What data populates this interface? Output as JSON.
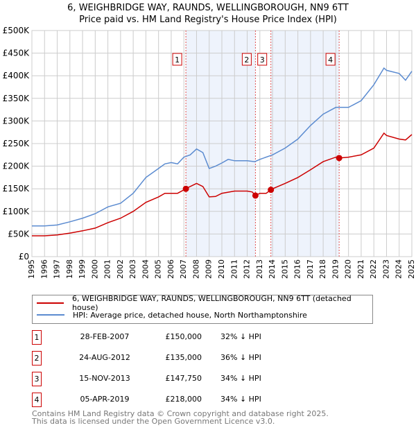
{
  "title": "6, WEIGHBRIDGE WAY, RAUNDS, WELLINGBOROUGH, NN9 6TT",
  "subtitle": "Price paid vs. HM Land Registry's House Price Index (HPI)",
  "chart_data": {
    "type": "line",
    "title": "6, WEIGHBRIDGE WAY, RAUNDS, WELLINGBOROUGH, NN9 6TT",
    "subtitle": "Price paid vs. HM Land Registry's House Price Index (HPI)",
    "xlim": [
      1995,
      2025
    ],
    "ylim": [
      0,
      500000
    ],
    "grid": true,
    "x_ticks": [
      "1995",
      "1996",
      "1997",
      "1998",
      "1999",
      "2000",
      "2001",
      "2002",
      "2003",
      "2004",
      "2005",
      "2006",
      "2007",
      "2008",
      "2009",
      "2010",
      "2011",
      "2012",
      "2013",
      "2014",
      "2015",
      "2016",
      "2017",
      "2018",
      "2019",
      "2020",
      "2021",
      "2022",
      "2023",
      "2024",
      "2025"
    ],
    "y_ticks": [
      {
        "v": 0,
        "label": "£0"
      },
      {
        "v": 50000,
        "label": "£50K"
      },
      {
        "v": 100000,
        "label": "£100K"
      },
      {
        "v": 150000,
        "label": "£150K"
      },
      {
        "v": 200000,
        "label": "£200K"
      },
      {
        "v": 250000,
        "label": "£250K"
      },
      {
        "v": 300000,
        "label": "£300K"
      },
      {
        "v": 350000,
        "label": "£350K"
      },
      {
        "v": 400000,
        "label": "£400K"
      },
      {
        "v": 450000,
        "label": "£450K"
      },
      {
        "v": 500000,
        "label": "£500K"
      }
    ],
    "shaded_ranges": [
      [
        2007.16,
        2012.65
      ],
      [
        2013.87,
        2019.26
      ]
    ],
    "series": [
      {
        "name": "6, WEIGHBRIDGE WAY, RAUNDS, WELLINGBOROUGH, NN9 6TT (detached house)",
        "color": "#cc0000",
        "x": [
          1995,
          1996,
          1997,
          1998,
          1999,
          2000,
          2001,
          2002,
          2003,
          2004,
          2005,
          2005.5,
          2006,
          2006.5,
          2007.16,
          2007.5,
          2008,
          2008.5,
          2009,
          2009.5,
          2010,
          2011,
          2012,
          2012.4,
          2012.65,
          2013,
          2013.5,
          2013.87,
          2014,
          2015,
          2016,
          2017,
          2018,
          2019,
          2019.26,
          2020,
          2021,
          2022,
          2022.8,
          2023,
          2024,
          2024.5,
          2025
        ],
        "y": [
          46000,
          46000,
          48000,
          52000,
          57000,
          63000,
          75000,
          85000,
          100000,
          120000,
          132000,
          140000,
          140000,
          140000,
          150000,
          155000,
          162000,
          155000,
          132000,
          133000,
          140000,
          145000,
          145000,
          143000,
          135000,
          140000,
          140000,
          147750,
          150000,
          162000,
          175000,
          192000,
          210000,
          220000,
          218000,
          220000,
          225000,
          240000,
          273000,
          268000,
          260000,
          258000,
          270000
        ]
      },
      {
        "name": "HPI: Average price, detached house, North Northamptonshire",
        "color": "#5b8bd0",
        "x": [
          1995,
          1996,
          1997,
          1998,
          1999,
          2000,
          2001,
          2002,
          2003,
          2004,
          2005,
          2005.5,
          2006,
          2006.5,
          2007,
          2007.5,
          2008,
          2008.5,
          2009,
          2009.5,
          2010,
          2010.5,
          2011,
          2012,
          2012.6,
          2013,
          2014,
          2015,
          2016,
          2017,
          2018,
          2019,
          2020,
          2021,
          2022,
          2022.8,
          2023,
          2024,
          2024.5,
          2025
        ],
        "y": [
          68000,
          68000,
          70000,
          77000,
          85000,
          95000,
          110000,
          118000,
          140000,
          175000,
          195000,
          205000,
          208000,
          205000,
          220000,
          225000,
          238000,
          230000,
          195000,
          200000,
          207000,
          215000,
          212000,
          212000,
          210000,
          215000,
          225000,
          240000,
          260000,
          290000,
          315000,
          330000,
          330000,
          345000,
          380000,
          417000,
          412000,
          405000,
          390000,
          410000
        ]
      }
    ],
    "sales": [
      {
        "n": "1",
        "x": 2007.16,
        "y": 150000
      },
      {
        "n": "2",
        "x": 2012.65,
        "y": 135000
      },
      {
        "n": "3",
        "x": 2013.87,
        "y": 147750
      },
      {
        "n": "4",
        "x": 2019.26,
        "y": 218000
      }
    ],
    "legend_placement": "below"
  },
  "legend": [
    {
      "label": "6, WEIGHBRIDGE WAY, RAUNDS, WELLINGBOROUGH, NN9 6TT (detached house)",
      "color": "#cc0000"
    },
    {
      "label": "HPI: Average price, detached house, North Northamptonshire",
      "color": "#5b8bd0"
    }
  ],
  "transactions": [
    {
      "num": "1",
      "date": "28-FEB-2007",
      "price": "£150,000",
      "hpi": "32% ↓ HPI"
    },
    {
      "num": "2",
      "date": "24-AUG-2012",
      "price": "£135,000",
      "hpi": "36% ↓ HPI"
    },
    {
      "num": "3",
      "date": "15-NOV-2013",
      "price": "£147,750",
      "hpi": "34% ↓ HPI"
    },
    {
      "num": "4",
      "date": "05-APR-2019",
      "price": "£218,000",
      "hpi": "34% ↓ HPI"
    }
  ],
  "footer": {
    "line1": "Contains HM Land Registry data © Crown copyright and database right 2025.",
    "line2": "This data is licensed under the Open Government Licence v3.0."
  }
}
